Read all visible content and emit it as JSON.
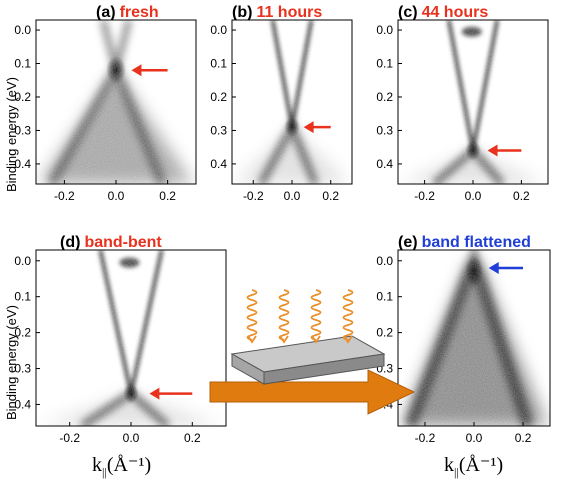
{
  "y_axis": {
    "label": "Binding energy (eV)",
    "ticks": [
      "0.0",
      "0.1",
      "0.2",
      "0.3",
      "0.4"
    ]
  },
  "x_axis": {
    "symbol": "k",
    "subscript": "||",
    "unit": "(Å⁻¹)",
    "ticks": [
      "-0.2",
      "0.0",
      "0.2"
    ]
  },
  "panels": [
    {
      "id": "a",
      "paren": "(a)",
      "title": "fresh",
      "title_color": "#e8321e",
      "arrow_color": "#e8321e",
      "dirac_point_eV": 0.12
    },
    {
      "id": "b",
      "paren": "(b)",
      "title": "11 hours",
      "title_color": "#e8321e",
      "arrow_color": "#e8321e",
      "dirac_point_eV": 0.29
    },
    {
      "id": "c",
      "paren": "(c)",
      "title": "44 hours",
      "title_color": "#e8321e",
      "arrow_color": "#e8321e",
      "dirac_point_eV": 0.36
    },
    {
      "id": "d",
      "paren": "(d)",
      "title": "band-bent",
      "title_color": "#e8321e",
      "arrow_color": "#e8321e",
      "dirac_point_eV": 0.37
    },
    {
      "id": "e",
      "paren": "(e)",
      "title": "band flattened",
      "title_color": "#1f3fd6",
      "arrow_color": "#1f3fd6",
      "dirac_point_eV": 0.02
    }
  ],
  "colors": {
    "accent_red": "#e8321e",
    "accent_blue": "#1f3fd6",
    "transition_arrow": "#e07b0f",
    "light_waves": "#ea8f2a",
    "slab_top": "#c9c9c9",
    "slab_side": "#8a8a8a"
  },
  "icons": [
    "light-wave-icon",
    "sample-slab-icon",
    "transition-arrow-icon",
    "dirac-point-arrow-icon"
  ]
}
